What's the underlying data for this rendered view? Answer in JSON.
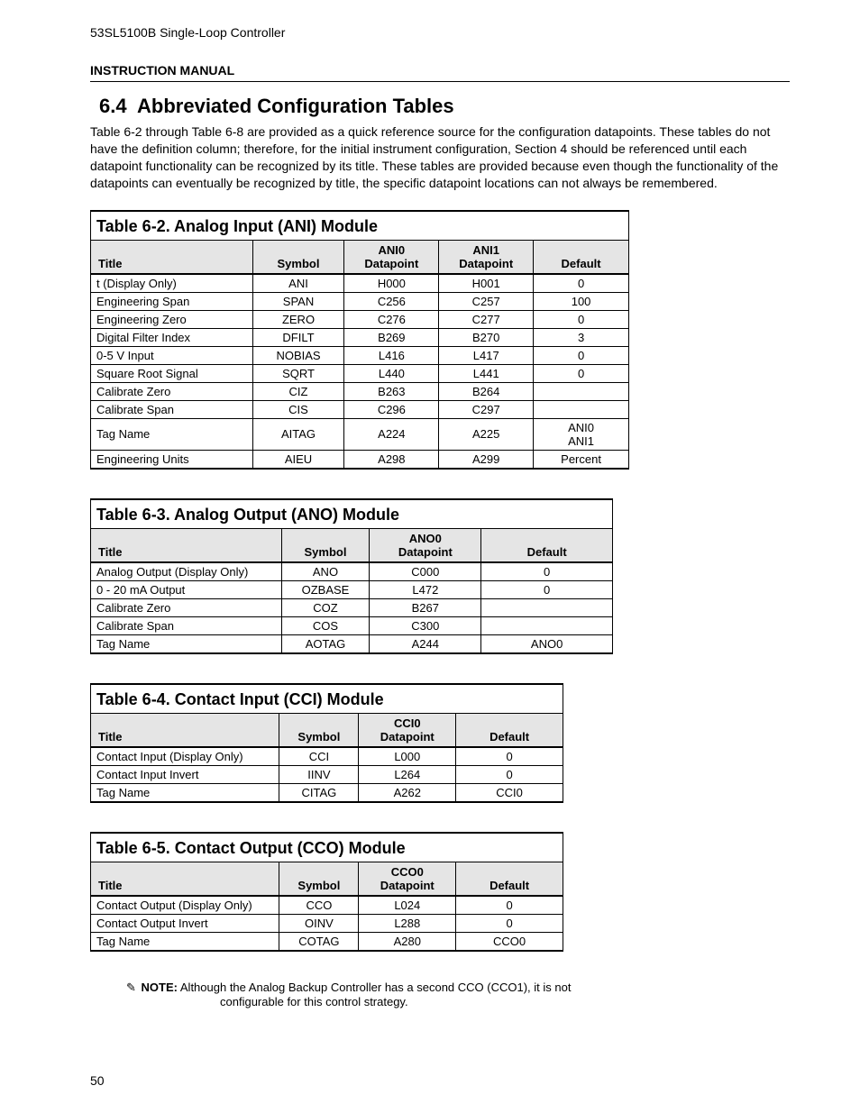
{
  "header": {
    "product_line": "53SL5100B Single-Loop Controller",
    "manual_label": "INSTRUCTION MANUAL"
  },
  "section": {
    "number": "6.4",
    "title": "Abbreviated Configuration Tables",
    "intro": "Table 6-2 through Table 6-8 are provided as a quick reference source for the configuration datapoints. These tables do not have the definition column; therefore, for the initial instrument configuration, Section 4 should be referenced until each datapoint functionality can be recognized by its title. These tables are provided because even though the functionality of the datapoints can eventually be recognized by title, the specific datapoint locations can not always be remembered."
  },
  "table62": {
    "caption": "Table 6-2. Analog Input (ANI) Module",
    "headers": {
      "title": "Title",
      "symbol": "Symbol",
      "dp0": "ANI0\nDatapoint",
      "dp1": "ANI1\nDatapoint",
      "def": "Default"
    },
    "rows": [
      {
        "title": "t (Display Only)",
        "sym": "ANI",
        "dp0": "H000",
        "dp1": "H001",
        "def": "0"
      },
      {
        "title": "Engineering Span",
        "sym": "SPAN",
        "dp0": "C256",
        "dp1": "C257",
        "def": "100"
      },
      {
        "title": "Engineering Zero",
        "sym": "ZERO",
        "dp0": "C276",
        "dp1": "C277",
        "def": "0"
      },
      {
        "title": "Digital Filter Index",
        "sym": "DFILT",
        "dp0": "B269",
        "dp1": "B270",
        "def": "3"
      },
      {
        "title": "0-5 V Input",
        "sym": "NOBIAS",
        "dp0": "L416",
        "dp1": "L417",
        "def": "0"
      },
      {
        "title": "Square Root Signal",
        "sym": "SQRT",
        "dp0": "L440",
        "dp1": "L441",
        "def": "0"
      },
      {
        "title": "Calibrate Zero",
        "sym": "CIZ",
        "dp0": "B263",
        "dp1": "B264",
        "def": ""
      },
      {
        "title": "Calibrate Span",
        "sym": "CIS",
        "dp0": "C296",
        "dp1": "C297",
        "def": ""
      },
      {
        "title": "Tag Name",
        "sym": "AITAG",
        "dp0": "A224",
        "dp1": "A225",
        "def": "ANI0\nANI1"
      },
      {
        "title": "Engineering Units",
        "sym": "AIEU",
        "dp0": "A298",
        "dp1": "A299",
        "def": "Percent"
      }
    ]
  },
  "table63": {
    "caption": "Table 6-3. Analog Output (ANO) Module",
    "headers": {
      "title": "Title",
      "symbol": "Symbol",
      "dp": "ANO0\nDatapoint",
      "def": "Default"
    },
    "rows": [
      {
        "title": "Analog Output (Display Only)",
        "sym": "ANO",
        "dp": "C000",
        "def": "0"
      },
      {
        "title": "0 - 20 mA Output",
        "sym": "OZBASE",
        "dp": "L472",
        "def": "0"
      },
      {
        "title": "Calibrate Zero",
        "sym": "COZ",
        "dp": "B267",
        "def": ""
      },
      {
        "title": "Calibrate Span",
        "sym": "COS",
        "dp": "C300",
        "def": ""
      },
      {
        "title": "Tag Name",
        "sym": "AOTAG",
        "dp": "A244",
        "def": "ANO0"
      }
    ]
  },
  "table64": {
    "caption": "Table 6-4. Contact Input (CCI) Module",
    "headers": {
      "title": "Title",
      "symbol": "Symbol",
      "dp": "CCI0\nDatapoint",
      "def": "Default"
    },
    "rows": [
      {
        "title": "Contact Input (Display Only)",
        "sym": "CCI",
        "dp": "L000",
        "def": "0"
      },
      {
        "title": "Contact Input Invert",
        "sym": "IINV",
        "dp": "L264",
        "def": "0"
      },
      {
        "title": "Tag Name",
        "sym": "CITAG",
        "dp": "A262",
        "def": "CCI0"
      }
    ]
  },
  "table65": {
    "caption": "Table 6-5. Contact Output (CCO) Module",
    "headers": {
      "title": "Title",
      "symbol": "Symbol",
      "dp": "CCO0\nDatapoint",
      "def": "Default"
    },
    "rows": [
      {
        "title": "Contact Output (Display Only)",
        "sym": "CCO",
        "dp": "L024",
        "def": "0"
      },
      {
        "title": "Contact Output Invert",
        "sym": "OINV",
        "dp": "L288",
        "def": "0"
      },
      {
        "title": "Tag Name",
        "sym": "COTAG",
        "dp": "A280",
        "def": "CCO0"
      }
    ]
  },
  "note": {
    "label": "NOTE:",
    "line1": "Although the Analog Backup Controller has a second CCO (CCO1), it is not",
    "line2": "configurable for this control strategy."
  },
  "page_number": "50"
}
